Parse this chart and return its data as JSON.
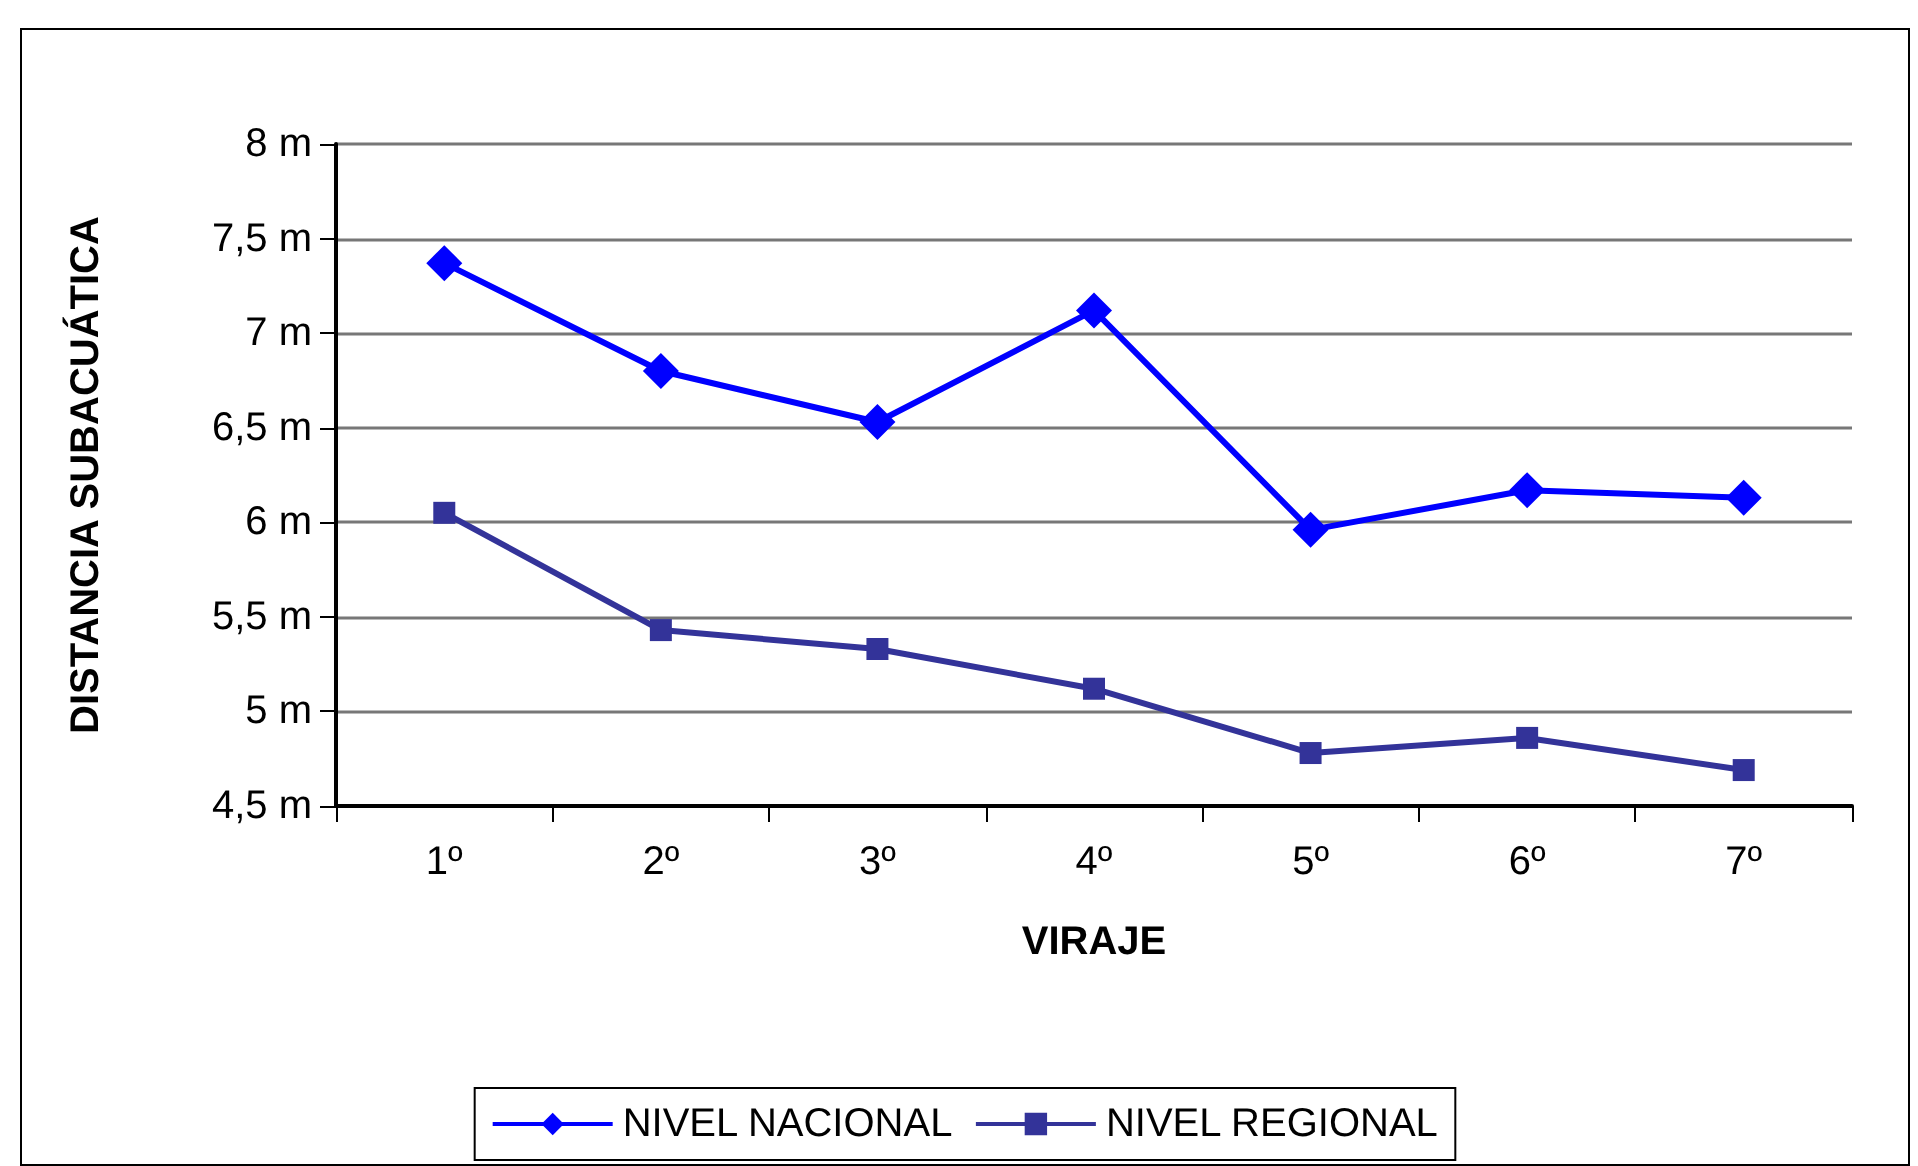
{
  "chart_data": {
    "type": "line",
    "xlabel": "VIRAJE",
    "ylabel": "DISTANCIA SUBACUÁTICA",
    "categories": [
      "1º",
      "2º",
      "3º",
      "4º",
      "5º",
      "6º",
      "7º"
    ],
    "series": [
      {
        "name": "NIVEL NACIONAL",
        "color": "#0000ff",
        "marker": "diamond",
        "values": [
          7.37,
          6.8,
          6.53,
          7.12,
          5.96,
          6.17,
          6.13
        ]
      },
      {
        "name": "NIVEL REGIONAL",
        "color": "#333399",
        "marker": "square",
        "values": [
          6.05,
          5.43,
          5.33,
          5.12,
          4.78,
          4.86,
          4.69
        ]
      }
    ],
    "ylim": [
      4.5,
      8
    ],
    "yticks": [
      {
        "value": 4.5,
        "label": "4,5 m"
      },
      {
        "value": 5,
        "label": "5 m"
      },
      {
        "value": 5.5,
        "label": "5,5 m"
      },
      {
        "value": 6,
        "label": "6 m"
      },
      {
        "value": 6.5,
        "label": "6,5 m"
      },
      {
        "value": 7,
        "label": "7 m"
      },
      {
        "value": 7.5,
        "label": "7,5 m"
      },
      {
        "value": 8,
        "label": "8 m"
      }
    ],
    "grid": "y",
    "legend": "bottom"
  }
}
